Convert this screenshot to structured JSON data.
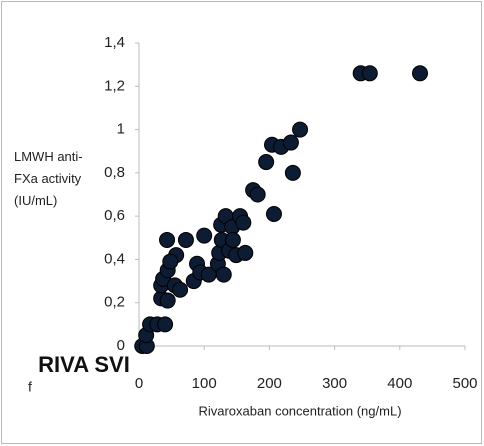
{
  "chart_data": {
    "type": "scatter",
    "x_label": "Rivaroxaban concentration (ng/mL)",
    "y_label": "LMWH anti-FXa activity (IU/mL)",
    "annotations": [
      "RIVA SVI",
      "f"
    ],
    "color": "#0d1b33",
    "grid": false,
    "xlim": [
      0,
      500
    ],
    "xticks": [
      0,
      100,
      200,
      300,
      400,
      500
    ],
    "ylim": [
      0,
      1.4
    ],
    "yticks": [
      0,
      {
        "value": 0.2,
        "label": "0,2"
      },
      {
        "value": 0.4,
        "label": "0,4"
      },
      {
        "value": 0.6,
        "label": "0,6"
      },
      {
        "value": 0.8,
        "label": "0,8"
      },
      1,
      {
        "value": 1.2,
        "label": "1,2"
      },
      {
        "value": 1.4,
        "label": "1,4"
      }
    ],
    "x": [
      5,
      12,
      11,
      17,
      28,
      40,
      34,
      34,
      37,
      44,
      43,
      44,
      55,
      63,
      57,
      48,
      72,
      84,
      89,
      94,
      100,
      107,
      121,
      123,
      127,
      126,
      130,
      133,
      138,
      143,
      144,
      149,
      155,
      160,
      163,
      175,
      182,
      195,
      204,
      207,
      218,
      233,
      236,
      247,
      340,
      354,
      431
    ],
    "values": [
      0,
      0,
      0.05,
      0.1,
      0.1,
      0.1,
      0.22,
      0.28,
      0.31,
      0.35,
      0.49,
      0.21,
      0.28,
      0.26,
      0.42,
      0.39,
      0.49,
      0.3,
      0.38,
      0.34,
      0.51,
      0.33,
      0.38,
      0.43,
      0.49,
      0.56,
      0.33,
      0.6,
      0.44,
      0.55,
      0.49,
      0.42,
      0.6,
      0.57,
      0.43,
      0.72,
      0.7,
      0.85,
      0.93,
      0.61,
      0.92,
      0.94,
      0.8,
      1.0,
      1.26,
      1.26,
      1.26
    ]
  }
}
